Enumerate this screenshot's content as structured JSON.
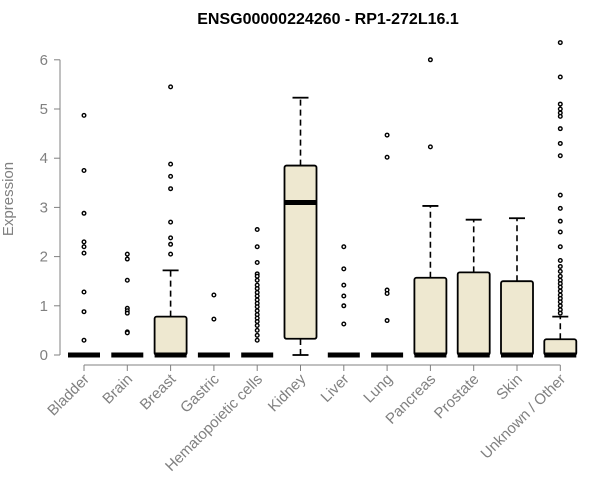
{
  "chart_data": {
    "type": "boxplot",
    "title": "ENSG00000224260 - RP1-272L16.1",
    "xlabel": "",
    "ylabel": "Expression",
    "ylim": [
      0,
      6.3
    ],
    "yticks": [
      "0",
      "1",
      "2",
      "3",
      "4",
      "5",
      "6"
    ],
    "box_fill": "#eee8d0",
    "axis_color": "#808080",
    "categories": [
      "Bladder",
      "Brain",
      "Breast",
      "Gastric",
      "Hematopoietic cells",
      "Kidney",
      "Liver",
      "Lung",
      "Pancreas",
      "Prostate",
      "Skin",
      "Unknown / Other"
    ],
    "boxes": [
      {
        "min": 0,
        "q1": 0,
        "median": 0,
        "q3": 0,
        "max": 0,
        "outliers": [
          4.87,
          3.75,
          2.88,
          2.3,
          2.2,
          2.07,
          1.28,
          0.88,
          0.3
        ]
      },
      {
        "min": 0,
        "q1": 0,
        "median": 0,
        "q3": 0,
        "max": 0,
        "outliers": [
          2.05,
          1.95,
          1.52,
          0.95,
          0.9,
          0.85,
          0.47,
          0.45
        ]
      },
      {
        "min": 0,
        "q1": 0,
        "median": 0,
        "q3": 0.78,
        "max": 1.72,
        "outliers": [
          5.45,
          3.88,
          3.63,
          3.38,
          2.7,
          2.38,
          2.25,
          2.05
        ]
      },
      {
        "min": 0,
        "q1": 0,
        "median": 0,
        "q3": 0,
        "max": 0,
        "outliers": [
          1.22,
          0.73
        ]
      },
      {
        "min": 0,
        "q1": 0,
        "median": 0,
        "q3": 0,
        "max": 0,
        "outliers": [
          2.55,
          2.2,
          1.88,
          1.65,
          1.6,
          1.52,
          1.42,
          1.35,
          1.27,
          1.2,
          1.12,
          1.05,
          0.98,
          0.9,
          0.82,
          0.75,
          0.68,
          0.6,
          0.5,
          0.4,
          0.3
        ]
      },
      {
        "min": 0,
        "q1": 0.33,
        "median": 3.1,
        "q3": 3.85,
        "max": 5.23,
        "outliers": []
      },
      {
        "min": 0,
        "q1": 0,
        "median": 0,
        "q3": 0,
        "max": 0,
        "outliers": [
          2.2,
          1.75,
          1.42,
          1.2,
          1.0,
          0.63
        ]
      },
      {
        "min": 0,
        "q1": 0,
        "median": 0,
        "q3": 0,
        "max": 0,
        "outliers": [
          4.47,
          4.02,
          1.32,
          1.25,
          0.7
        ]
      },
      {
        "min": 0,
        "q1": 0,
        "median": 0,
        "q3": 1.57,
        "max": 3.03,
        "outliers": [
          6.0,
          4.23
        ]
      },
      {
        "min": 0,
        "q1": 0,
        "median": 0,
        "q3": 1.68,
        "max": 2.75,
        "outliers": []
      },
      {
        "min": 0,
        "q1": 0,
        "median": 0,
        "q3": 1.5,
        "max": 2.78,
        "outliers": []
      },
      {
        "min": 0,
        "q1": 0,
        "median": 0,
        "q3": 0.32,
        "max": 0.78,
        "outliers": [
          6.35,
          5.65,
          5.1,
          5.0,
          4.92,
          4.85,
          4.6,
          4.3,
          4.05,
          3.25,
          2.98,
          2.72,
          2.5,
          2.2,
          1.92,
          1.8,
          1.7,
          1.6,
          1.52,
          1.45,
          1.38,
          1.3,
          1.22,
          1.15,
          1.08,
          1.0,
          0.92,
          0.85
        ]
      }
    ]
  }
}
